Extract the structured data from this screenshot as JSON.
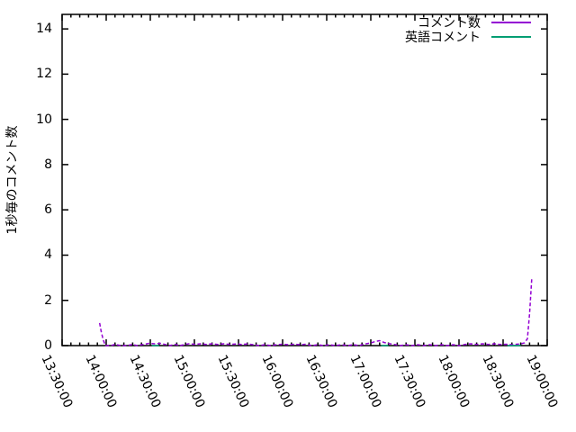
{
  "chart_data": {
    "type": "line",
    "title": "",
    "ylabel": "1秒毎のコメント数",
    "xlabel": "",
    "grid": false,
    "legend_position": "top-right-inside",
    "frame_color": "#000000",
    "xlim_minutes": [
      810,
      1140
    ],
    "ylim": [
      0,
      14.64
    ],
    "y_ticks": [
      0,
      2,
      4,
      6,
      8,
      10,
      12,
      14
    ],
    "x_minor_step_minutes": 6,
    "x_ticks": [
      {
        "minute": 810,
        "label": "13:30:00"
      },
      {
        "minute": 840,
        "label": "14:00:00"
      },
      {
        "minute": 870,
        "label": "14:30:00"
      },
      {
        "minute": 900,
        "label": "15:00:00"
      },
      {
        "minute": 930,
        "label": "15:30:00"
      },
      {
        "minute": 960,
        "label": "16:00:00"
      },
      {
        "minute": 990,
        "label": "16:30:00"
      },
      {
        "minute": 1020,
        "label": "17:00:00"
      },
      {
        "minute": 1050,
        "label": "17:30:00"
      },
      {
        "minute": 1080,
        "label": "18:00:00"
      },
      {
        "minute": 1110,
        "label": "18:30:00"
      },
      {
        "minute": 1140,
        "label": "19:00:00"
      }
    ],
    "series": [
      {
        "name": "コメント数",
        "color": "#9400d3",
        "style": "dashed",
        "segments": [
          [
            [
              835.5,
              1
            ],
            [
              836.5,
              0.65
            ],
            [
              838,
              0.25
            ],
            [
              839.5,
              0
            ],
            [
              843,
              0
            ],
            [
              846,
              0.05
            ],
            [
              850,
              0
            ],
            [
              854,
              0
            ],
            [
              858,
              0.05
            ],
            [
              861,
              0
            ],
            [
              866,
              0.06
            ],
            [
              869,
              0.1
            ],
            [
              873,
              0.08
            ],
            [
              877,
              0.1
            ],
            [
              880,
              0.05
            ],
            [
              883,
              0
            ],
            [
              887,
              0.05
            ],
            [
              890,
              0
            ],
            [
              894,
              0.05
            ],
            [
              897,
              0.09
            ],
            [
              900,
              0.05
            ],
            [
              904,
              0.08
            ],
            [
              908,
              0.05
            ],
            [
              912,
              0.08
            ],
            [
              916,
              0.05
            ],
            [
              920,
              0.08
            ],
            [
              924,
              0.05
            ],
            [
              928,
              0.07
            ],
            [
              932,
              0.05
            ],
            [
              936,
              0.07
            ],
            [
              940,
              0.04
            ],
            [
              944,
              0
            ],
            [
              948,
              0.04
            ],
            [
              952,
              0
            ],
            [
              956,
              0.04
            ],
            [
              960,
              0.06
            ],
            [
              964,
              0.04
            ],
            [
              968,
              0.06
            ],
            [
              972,
              0.04
            ],
            [
              976,
              0.06
            ],
            [
              980,
              0
            ],
            [
              984,
              0.04
            ],
            [
              988,
              0
            ],
            [
              992,
              0.04
            ],
            [
              996,
              0
            ],
            [
              1000,
              0.04
            ],
            [
              1004,
              0
            ],
            [
              1008,
              0.04
            ],
            [
              1012,
              0
            ],
            [
              1016,
              0.07
            ],
            [
              1020,
              0.12
            ],
            [
              1023,
              0.18
            ],
            [
              1026,
              0.22
            ],
            [
              1029,
              0.14
            ],
            [
              1032,
              0.09
            ],
            [
              1036,
              0.05
            ],
            [
              1040,
              0
            ],
            [
              1044,
              0.04
            ],
            [
              1048,
              0
            ],
            [
              1052,
              0.04
            ],
            [
              1056,
              0
            ],
            [
              1060,
              0.04
            ],
            [
              1064,
              0
            ],
            [
              1068,
              0.04
            ],
            [
              1072,
              0
            ],
            [
              1076,
              0.04
            ],
            [
              1080,
              0
            ],
            [
              1084,
              0.05
            ],
            [
              1088,
              0.08
            ],
            [
              1092,
              0.05
            ],
            [
              1096,
              0.08
            ],
            [
              1100,
              0.05
            ],
            [
              1104,
              0.08
            ],
            [
              1108,
              0.05
            ],
            [
              1112,
              0.06
            ],
            [
              1116,
              0.04
            ],
            [
              1119,
              0.06
            ],
            [
              1122,
              0.08
            ],
            [
              1124.5,
              0.12
            ],
            [
              1126.5,
              0.3
            ],
            [
              1128,
              1.4
            ],
            [
              1129.5,
              3
            ]
          ]
        ]
      },
      {
        "name": "英語コメント",
        "color": "#009e73",
        "style": "solid",
        "segments": [
          [
            [
              871,
              0
            ],
            [
              876,
              0
            ]
          ],
          [
            [
              1027,
              0
            ],
            [
              1032,
              0
            ]
          ],
          [
            [
              1113,
              0
            ],
            [
              1122,
              0
            ]
          ]
        ]
      }
    ]
  }
}
